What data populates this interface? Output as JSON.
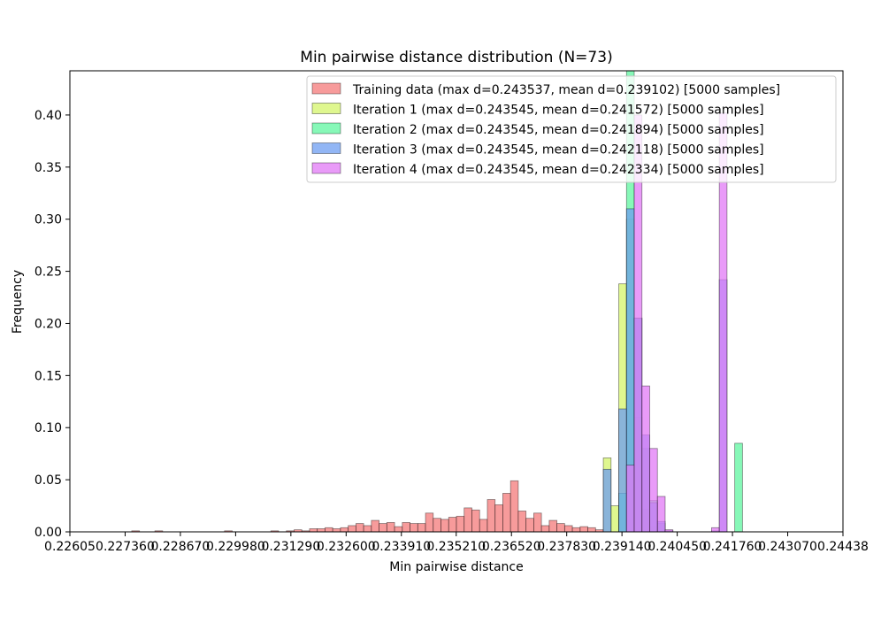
{
  "chart_data": {
    "type": "bar",
    "title": "Min pairwise distance distribution (N=73)",
    "xlabel": "Min pairwise distance",
    "ylabel": "Frequency",
    "xlim": [
      0.22605,
      0.24438
    ],
    "ylim": [
      0,
      0.4424
    ],
    "x_ticks": [
      0.22605,
      0.22736,
      0.22867,
      0.22998,
      0.23129,
      0.2326,
      0.23391,
      0.23521,
      0.23652,
      0.23783,
      0.23914,
      0.24045,
      0.24176,
      0.24307,
      0.24438
    ],
    "x_tick_labels": [
      "0.22605",
      "0.227360",
      "0.228670",
      "0.229980",
      "0.231290",
      "0.232600",
      "0.233910",
      "0.235210",
      "0.236520",
      "0.237830",
      "0.239140",
      "0.240450",
      "0.241760",
      "0.243070",
      "0.24438"
    ],
    "y_ticks": [
      0.0,
      0.05,
      0.1,
      0.15,
      0.2,
      0.25,
      0.3,
      0.35,
      0.4
    ],
    "y_tick_labels": [
      "0.00",
      "0.05",
      "0.10",
      "0.15",
      "0.20",
      "0.25",
      "0.30",
      "0.35",
      "0.40"
    ],
    "bin_edges_start": 0.22605,
    "bin_width": 0.0001833,
    "legend_position": "upper right",
    "series": [
      {
        "name": "Training data (max d=0.243537, mean d=0.239102) [5000 samples]",
        "color": "#f47a7a",
        "values": [
          0,
          0,
          0,
          0,
          0,
          0,
          0,
          0,
          0.001,
          0,
          0,
          0.001,
          0,
          0,
          0,
          0,
          0,
          0,
          0,
          0,
          0.001,
          0,
          0,
          0,
          0,
          0,
          0.001,
          0,
          0.001,
          0.002,
          0.001,
          0.003,
          0.003,
          0.004,
          0.003,
          0.004,
          0.006,
          0.008,
          0.006,
          0.011,
          0.008,
          0.009,
          0.005,
          0.009,
          0.008,
          0.008,
          0.018,
          0.013,
          0.012,
          0.014,
          0.015,
          0.023,
          0.021,
          0.012,
          0.031,
          0.026,
          0.037,
          0.049,
          0.02,
          0.013,
          0.018,
          0.006,
          0.011,
          0.008,
          0.006,
          0.004,
          0.005,
          0.004,
          0.002,
          0,
          0,
          0,
          0,
          0,
          0,
          0,
          0,
          0,
          0,
          0,
          0,
          0,
          0,
          0,
          0,
          0,
          0,
          0,
          0,
          0,
          0,
          0,
          0,
          0,
          0,
          0,
          0,
          0,
          0,
          0
        ]
      },
      {
        "name": "Iteration 1 (max d=0.243545, mean d=0.241572) [5000 samples]",
        "color": "#d4f46a",
        "values": [
          0,
          0,
          0,
          0,
          0,
          0,
          0,
          0,
          0,
          0,
          0,
          0,
          0,
          0,
          0,
          0,
          0,
          0,
          0,
          0,
          0,
          0,
          0,
          0,
          0,
          0,
          0,
          0,
          0,
          0,
          0,
          0,
          0,
          0,
          0,
          0,
          0,
          0,
          0,
          0,
          0,
          0,
          0,
          0,
          0,
          0,
          0,
          0,
          0,
          0,
          0,
          0,
          0,
          0,
          0,
          0,
          0,
          0,
          0,
          0,
          0,
          0,
          0,
          0,
          0,
          0,
          0,
          0,
          0,
          0.071,
          0.025,
          0.238,
          0.3,
          0.11,
          0.022,
          0.005,
          0.001,
          0,
          0,
          0,
          0,
          0,
          0,
          0,
          0,
          0,
          0,
          0,
          0,
          0,
          0,
          0,
          0,
          0,
          0,
          0,
          0,
          0,
          0,
          0
        ]
      },
      {
        "name": "Iteration 2 (max d=0.243545, mean d=0.241894) [5000 samples]",
        "color": "#5ff5a0",
        "values": [
          0,
          0,
          0,
          0,
          0,
          0,
          0,
          0,
          0,
          0,
          0,
          0,
          0,
          0,
          0,
          0,
          0,
          0,
          0,
          0,
          0,
          0,
          0,
          0,
          0,
          0,
          0,
          0,
          0,
          0,
          0,
          0,
          0,
          0,
          0,
          0,
          0,
          0,
          0,
          0,
          0,
          0,
          0,
          0,
          0,
          0,
          0,
          0,
          0,
          0,
          0,
          0,
          0,
          0,
          0,
          0,
          0,
          0,
          0,
          0,
          0,
          0,
          0,
          0,
          0,
          0,
          0,
          0,
          0,
          0,
          0,
          0.037,
          0.445,
          0.205,
          0.08,
          0.03,
          0.008,
          0.001,
          0,
          0,
          0,
          0,
          0,
          0,
          0,
          0,
          0.085,
          0,
          0,
          0,
          0,
          0,
          0,
          0,
          0,
          0,
          0,
          0,
          0,
          0
        ]
      },
      {
        "name": "Iteration 3 (max d=0.243545, mean d=0.242118) [5000 samples]",
        "color": "#6d9ef1",
        "values": [
          0,
          0,
          0,
          0,
          0,
          0,
          0,
          0,
          0,
          0,
          0,
          0,
          0,
          0,
          0,
          0,
          0,
          0,
          0,
          0,
          0,
          0,
          0,
          0,
          0,
          0,
          0,
          0,
          0,
          0,
          0,
          0,
          0,
          0,
          0,
          0,
          0,
          0,
          0,
          0,
          0,
          0,
          0,
          0,
          0,
          0,
          0,
          0,
          0,
          0,
          0,
          0,
          0,
          0,
          0,
          0,
          0,
          0,
          0,
          0,
          0,
          0,
          0,
          0,
          0,
          0,
          0,
          0,
          0,
          0.06,
          0,
          0.118,
          0.31,
          0.205,
          0.093,
          0.028,
          0.01,
          0.001,
          0,
          0,
          0,
          0,
          0,
          0.001,
          0.242,
          0,
          0,
          0,
          0,
          0,
          0,
          0,
          0,
          0,
          0,
          0,
          0,
          0,
          0,
          0
        ]
      },
      {
        "name": "Iteration 4 (max d=0.243545, mean d=0.242334) [5000 samples]",
        "color": "#e27af5",
        "values": [
          0,
          0,
          0,
          0,
          0,
          0,
          0,
          0,
          0,
          0,
          0,
          0,
          0,
          0,
          0,
          0,
          0,
          0,
          0,
          0,
          0,
          0,
          0,
          0,
          0,
          0,
          0,
          0,
          0,
          0,
          0,
          0,
          0,
          0,
          0,
          0,
          0,
          0,
          0,
          0,
          0,
          0,
          0,
          0,
          0,
          0,
          0,
          0,
          0,
          0,
          0,
          0,
          0,
          0,
          0,
          0,
          0,
          0,
          0,
          0,
          0,
          0,
          0,
          0,
          0,
          0,
          0,
          0,
          0,
          0,
          0,
          0,
          0.064,
          0.4,
          0.14,
          0.08,
          0.034,
          0.002,
          0,
          0,
          0,
          0,
          0,
          0.004,
          0.402,
          0,
          0,
          0,
          0,
          0,
          0,
          0,
          0,
          0,
          0,
          0,
          0,
          0,
          0,
          0
        ]
      }
    ]
  }
}
